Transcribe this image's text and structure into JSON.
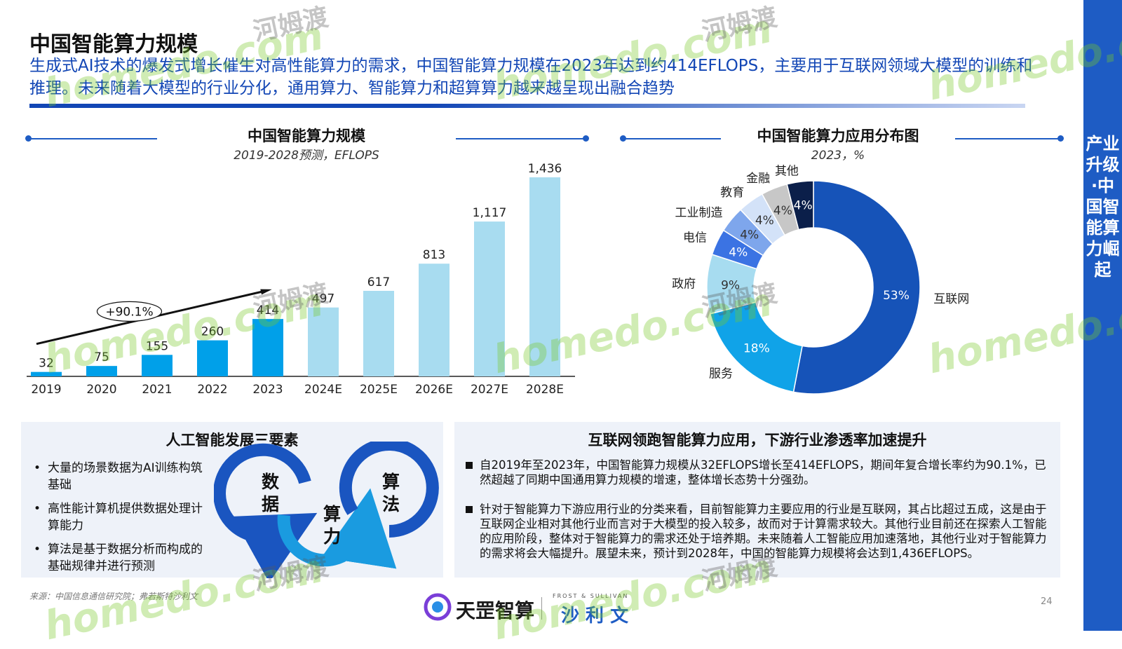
{
  "page": {
    "title": "中国智能算力规模",
    "subtitle": "生成式AI技术的爆发式增长催生对高性能算力的需求，中国智能算力规模在2023年达到约414EFLOPS，主要用于互联网领域大模型的训练和推理。未来随着大模型的行业分化，通用算力、智能算力和超算算力越来越呈现出融合趋势",
    "sidebar": "产业升级·中国智能算力崛起",
    "source": "来源：中国信息通信研究院；弗若斯特沙利文",
    "page_number": "24",
    "logo_left": "天罡智算",
    "logo_right": "沙 利 文",
    "logo_right_small": "FROST & SULLIVAN",
    "watermark_en": "homedo.com",
    "watermark_cn": "河姆渡"
  },
  "colors": {
    "accent": "#1e5cc4",
    "bar_actual": "#00a0e9",
    "bar_forecast": "#a8dcf0"
  },
  "chart_data": [
    {
      "type": "bar",
      "title": "中国智能算力规模",
      "subtitle": "2019-2028预测，EFLOPS",
      "categories": [
        "2019",
        "2020",
        "2021",
        "2022",
        "2023",
        "2024E",
        "2025E",
        "2026E",
        "2027E",
        "2028E"
      ],
      "values": [
        32,
        75,
        155,
        260,
        414,
        497,
        617,
        813,
        1117,
        1436
      ],
      "value_labels": [
        "32",
        "75",
        "155",
        "260",
        "414",
        "497",
        "617",
        "813",
        "1,117",
        "1,436"
      ],
      "forecast_from_index": 5,
      "annotation": "+90.1%",
      "ylim": [
        0,
        1436
      ]
    },
    {
      "type": "pie",
      "title": "中国智能算力应用分布图",
      "subtitle": "2023，%",
      "slices": [
        {
          "name": "互联网",
          "value": 53,
          "label": "53%",
          "color": "#1653b8"
        },
        {
          "name": "服务",
          "value": 18,
          "label": "18%",
          "color": "#10a3e8"
        },
        {
          "name": "政府",
          "value": 9,
          "label": "9%",
          "color": "#a7dcf0"
        },
        {
          "name": "电信",
          "value": 4,
          "label": "4%",
          "color": "#3b73e3"
        },
        {
          "name": "工业制造",
          "value": 4,
          "label": "4%",
          "color": "#7ea6ec"
        },
        {
          "name": "教育",
          "value": 4,
          "label": "4%",
          "color": "#d3e2f8"
        },
        {
          "name": "金融",
          "value": 4,
          "label": "4%",
          "color": "#c7c7c7"
        },
        {
          "name": "其他",
          "value": 4,
          "label": "4%",
          "color": "#0b1f4a"
        }
      ]
    }
  ],
  "left_panel": {
    "title": "人工智能发展三要素",
    "bullets": [
      "大量的场景数据为AI训练构筑基础",
      "高性能计算机提供数据处理计算能力",
      "算法是基于数据分析而构成的基础规律并进行预测"
    ],
    "cycle": {
      "a": "数据",
      "b": "算力",
      "c": "算法"
    }
  },
  "right_panel": {
    "title": "互联网领跑智能算力应用，下游行业渗透率加速提升",
    "paragraphs": [
      "自2019年至2023年，中国智能算力规模从32EFLOPS增长至414EFLOPS，期间年复合增长率约为90.1%，已然超越了同期中国通用算力规模的增速，整体增长态势十分强劲。",
      "针对于智能算力下游应用行业的分类来看，目前智能算力主要应用的行业是互联网，其占比超过五成，这是由于互联网企业相对其他行业而言对于大模型的投入较多，故而对于计算需求较大。其他行业目前还在探索人工智能的应用阶段，整体对于智能算力的需求还处于培养期。未来随着人工智能应用加速落地，其他行业对于智能算力的需求将会大幅提升。展望未来，预计到2028年，中国的智能算力规模将会达到1,436EFLOPS。"
    ]
  }
}
